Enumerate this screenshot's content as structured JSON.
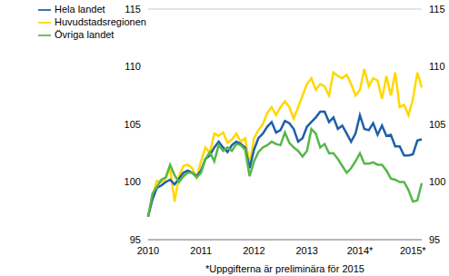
{
  "chart_data": {
    "type": "line",
    "xlabel": "*Uppgifterna är preliminära för 2015",
    "categories": [
      "2010",
      null,
      null,
      null,
      null,
      null,
      null,
      null,
      null,
      null,
      null,
      null,
      "2011",
      null,
      null,
      null,
      null,
      null,
      null,
      null,
      null,
      null,
      null,
      null,
      "2012",
      null,
      null,
      null,
      null,
      null,
      null,
      null,
      null,
      null,
      null,
      null,
      "2013",
      null,
      null,
      null,
      null,
      null,
      null,
      null,
      null,
      null,
      null,
      null,
      "2014*",
      null,
      null,
      null,
      null,
      null,
      null,
      null,
      null,
      null,
      null,
      null,
      "2015*",
      null,
      null
    ],
    "series": [
      {
        "name": "Huvudstadsregionen",
        "color": "#ffd800",
        "values": [
          97,
          98.8,
          100.1,
          100,
          100.3,
          101.2,
          98.3,
          100.5,
          101.4,
          101.5,
          101.2,
          100.4,
          101.8,
          103,
          102.5,
          104.2,
          104,
          104.3,
          103.4,
          103.7,
          104.2,
          103.5,
          103.8,
          101.5,
          103.8,
          104.5,
          105,
          106,
          106.5,
          105.8,
          106.5,
          107,
          106.5,
          105.5,
          106.5,
          107.5,
          108.5,
          109,
          108,
          108.5,
          108.3,
          107.5,
          109.5,
          109.2,
          109,
          109.3,
          108.5,
          107.5,
          108,
          109.8,
          108.3,
          109,
          108.8,
          107.2,
          109.2,
          107.5,
          109.5,
          106.5,
          106.7,
          105.8,
          107.2,
          109.5,
          108.2
        ]
      },
      {
        "name": "Hela landet",
        "color": "#1f5fa8",
        "values": [
          97,
          98.5,
          99.5,
          99.7,
          100,
          100.2,
          99.8,
          100.3,
          100.8,
          101,
          100.8,
          100.5,
          101,
          102,
          102.3,
          103,
          103.5,
          103,
          102.6,
          103.2,
          103.5,
          103.3,
          103,
          101.2,
          102.8,
          103.8,
          104.2,
          104.8,
          105.2,
          104.3,
          104.5,
          105.3,
          105.1,
          104.6,
          103.5,
          103.8,
          104.8,
          105.2,
          105.6,
          106.1,
          106.1,
          105.2,
          105.6,
          104.6,
          104.9,
          104.2,
          103.5,
          104.2,
          105.8,
          104.6,
          104.5,
          105.1,
          104.1,
          104.9,
          104,
          104.1,
          103.1,
          103.1,
          102.3,
          102.3,
          102.4,
          103.6,
          103.7
        ]
      },
      {
        "name": "Övriga landet",
        "color": "#55b848",
        "values": [
          97,
          99,
          99.6,
          100.2,
          100.4,
          101.5,
          100.6,
          100,
          100.5,
          100.8,
          100.8,
          100.4,
          100.8,
          102,
          102.6,
          101.8,
          103.2,
          102.7,
          103,
          102.7,
          103.3,
          103.2,
          102.8,
          100.5,
          101.8,
          102.6,
          103,
          103.2,
          103.5,
          103.3,
          103.2,
          104.3,
          103.4,
          103,
          102.7,
          102.2,
          102.7,
          104.6,
          104.2,
          103,
          103.3,
          102.5,
          102.5,
          102,
          101.4,
          100.8,
          101.2,
          101.8,
          102.5,
          101.6,
          101.6,
          101.7,
          101.5,
          101.5,
          101,
          100.3,
          100.2,
          100,
          100,
          99.3,
          98.3,
          98.4,
          99.9
        ]
      }
    ],
    "ylim": [
      95,
      115
    ],
    "yticks": [
      95,
      100,
      105,
      110,
      115
    ],
    "y2lim": [
      95,
      115
    ],
    "y2ticks": [
      95,
      100,
      105,
      110,
      115
    ],
    "grid": true,
    "legend": "upper left"
  }
}
